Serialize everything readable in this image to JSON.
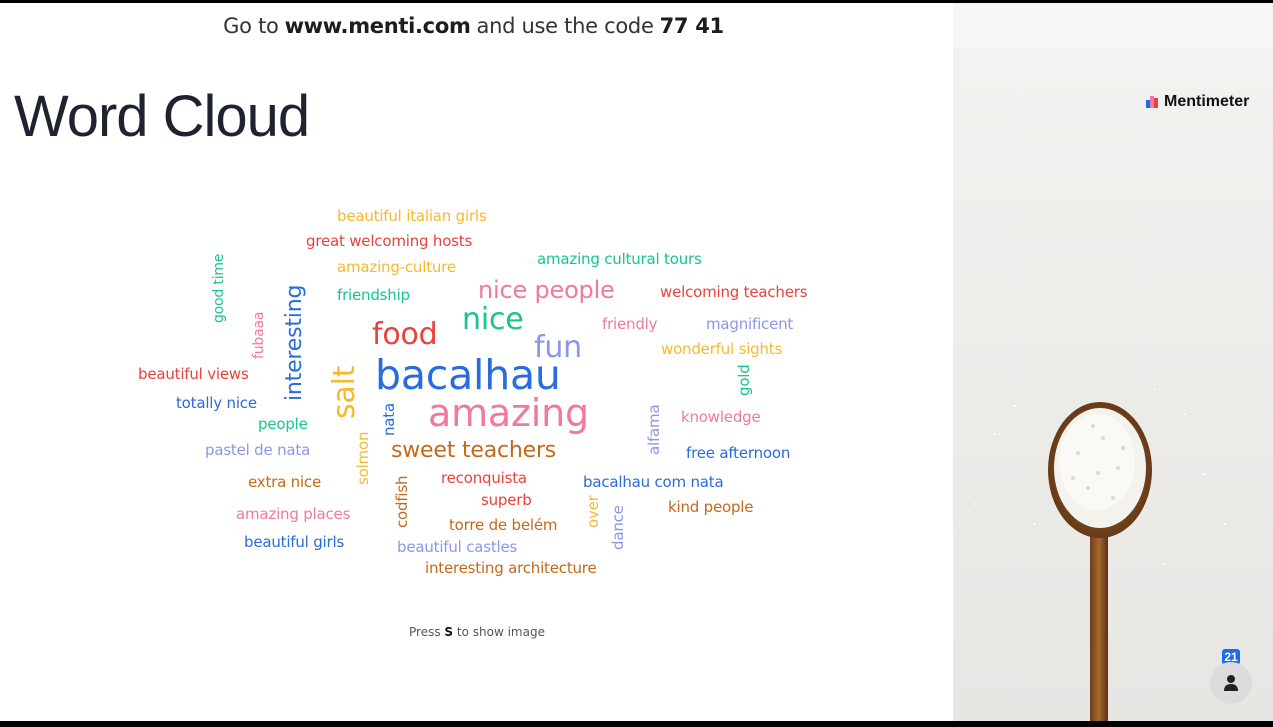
{
  "topbar": {
    "prefix": "Go to",
    "url": "www.menti.com",
    "middle": "and use the code",
    "code": "77 41"
  },
  "title": "Word Cloud",
  "hint": {
    "before": "Press",
    "key": "S",
    "after": "to show image"
  },
  "brand": "Mentimeter",
  "participant_count": "21",
  "colors": {
    "yellow": "#f6b92b",
    "red": "#e8423c",
    "green": "#17c58e",
    "pink": "#f0799e",
    "lavender": "#8a97e6",
    "blue": "#2a6bdd",
    "orange": "#c4691a",
    "accent": "#1a6cf0"
  },
  "words": [
    {
      "text": "beautiful italian girls",
      "color": "yellow"
    },
    {
      "text": "great welcoming hosts",
      "color": "red"
    },
    {
      "text": "amazing-culture",
      "color": "yellow"
    },
    {
      "text": "amazing cultural tours",
      "color": "green"
    },
    {
      "text": "friendship",
      "color": "green"
    },
    {
      "text": "nice people",
      "color": "pink"
    },
    {
      "text": "welcoming teachers",
      "color": "red"
    },
    {
      "text": "good time",
      "color": "green"
    },
    {
      "text": "interesting",
      "color": "blue"
    },
    {
      "text": "fubaaa",
      "color": "pink"
    },
    {
      "text": "nice",
      "color": "green"
    },
    {
      "text": "friendly",
      "color": "pink"
    },
    {
      "text": "magnificent",
      "color": "lavender"
    },
    {
      "text": "food",
      "color": "red"
    },
    {
      "text": "fun",
      "color": "lavender"
    },
    {
      "text": "wonderful sights",
      "color": "yellow"
    },
    {
      "text": "beautiful views",
      "color": "red"
    },
    {
      "text": "salt",
      "color": "yellow"
    },
    {
      "text": "bacalhau",
      "color": "blue"
    },
    {
      "text": "gold",
      "color": "green"
    },
    {
      "text": "totally nice",
      "color": "blue"
    },
    {
      "text": "nata",
      "color": "blue"
    },
    {
      "text": "amazing",
      "color": "pink"
    },
    {
      "text": "alfama",
      "color": "lavender"
    },
    {
      "text": "knowledge",
      "color": "pink"
    },
    {
      "text": "people",
      "color": "green"
    },
    {
      "text": "pastel de nata",
      "color": "lavender"
    },
    {
      "text": "solmon",
      "color": "yellow"
    },
    {
      "text": "sweet teachers",
      "color": "orange"
    },
    {
      "text": "free afternoon",
      "color": "blue"
    },
    {
      "text": "extra nice",
      "color": "orange"
    },
    {
      "text": "reconquista",
      "color": "red"
    },
    {
      "text": "bacalhau com nata",
      "color": "blue"
    },
    {
      "text": "codfish",
      "color": "orange"
    },
    {
      "text": "superb",
      "color": "red"
    },
    {
      "text": "over",
      "color": "yellow"
    },
    {
      "text": "kind people",
      "color": "orange"
    },
    {
      "text": "amazing places",
      "color": "pink"
    },
    {
      "text": "torre de belém",
      "color": "orange"
    },
    {
      "text": "dance",
      "color": "lavender"
    },
    {
      "text": "beautiful girls",
      "color": "blue"
    },
    {
      "text": "beautiful castles",
      "color": "lavender"
    },
    {
      "text": "interesting architecture",
      "color": "orange"
    }
  ]
}
